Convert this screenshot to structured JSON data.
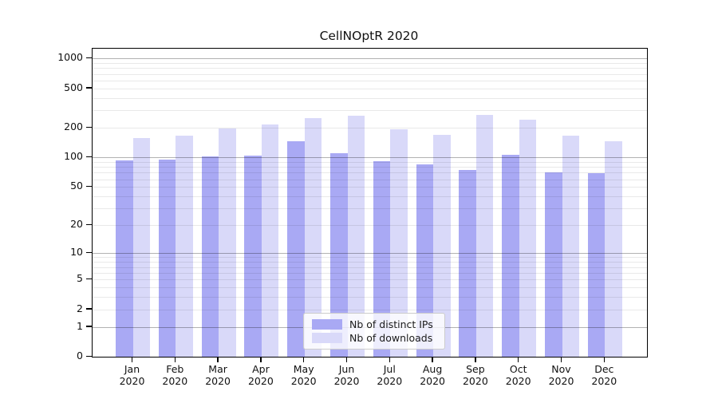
{
  "title": "CellNOptR 2020",
  "chart_data": {
    "type": "bar",
    "title": "CellNOptR 2020",
    "months": [
      "Jan",
      "Feb",
      "Mar",
      "Apr",
      "May",
      "Jun",
      "Jul",
      "Aug",
      "Sep",
      "Oct",
      "Nov",
      "Dec"
    ],
    "year": "2020",
    "categories": [
      "Jan 2020",
      "Feb 2020",
      "Mar 2020",
      "Apr 2020",
      "May 2020",
      "Jun 2020",
      "Jul 2020",
      "Aug 2020",
      "Sep 2020",
      "Oct 2020",
      "Nov 2020",
      "Dec 2020"
    ],
    "series": [
      {
        "name": "Nb of distinct IPs",
        "color": "#a9a9f4",
        "values": [
          94,
          96,
          103,
          104,
          146,
          111,
          92,
          85,
          74,
          106,
          71,
          69
        ]
      },
      {
        "name": "Nb of downloads",
        "color": "#d9d9f9",
        "values": [
          157,
          166,
          197,
          217,
          252,
          265,
          194,
          170,
          272,
          242,
          166,
          145
        ]
      }
    ],
    "yscale": "log1p",
    "ylim": [
      0,
      1254
    ],
    "yticks": [
      0,
      1,
      2,
      5,
      10,
      20,
      50,
      100,
      200,
      500,
      1000
    ],
    "grid": {
      "major": [
        1,
        10,
        100,
        1000
      ],
      "minor_base": [
        2,
        3,
        4,
        5,
        6,
        7,
        8,
        9
      ],
      "minor_decades": [
        1,
        10,
        100
      ],
      "on": true
    },
    "legend_position": "bottom-center",
    "xlabel": "",
    "ylabel": ""
  }
}
